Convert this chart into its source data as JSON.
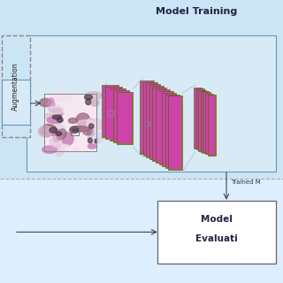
{
  "bg_color": "#ddeeff",
  "bg_color_top": "#cce5f5",
  "bg_color_bottom": "#ddeeff",
  "text_color": "#222222",
  "title_training": "Model Training",
  "label_augmentation": "Augmentation",
  "label_trained_model": "Trained M",
  "purple_color": "#cc44aa",
  "olive_color": "#887722",
  "box_border": "#4488aa",
  "arrow_color": "#555555"
}
